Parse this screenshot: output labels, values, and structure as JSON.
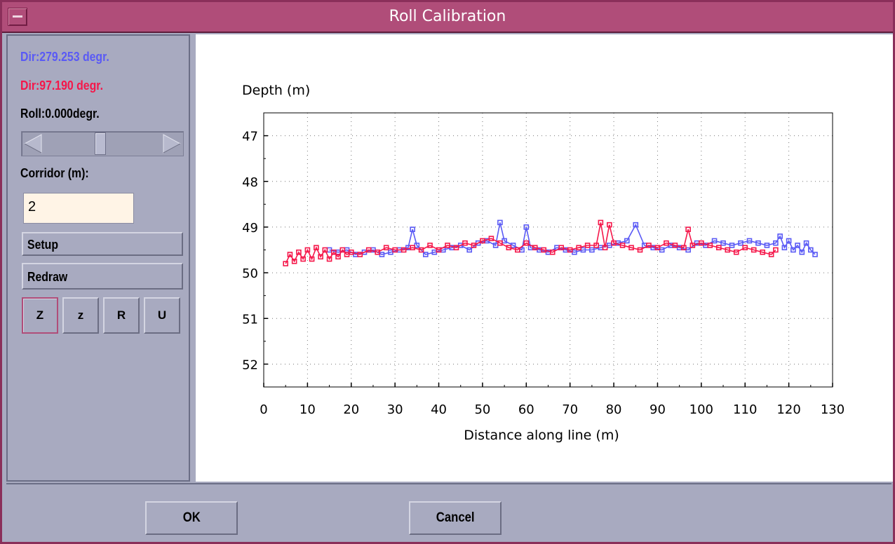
{
  "window": {
    "title": "Roll Calibration"
  },
  "sidebar": {
    "dir1_label": "Dir:279.253 degr.",
    "dir1_color": "#5a5af5",
    "dir2_label": "Dir:97.190 degr.",
    "dir2_color": "#f5174a",
    "roll_label": "Roll:0.000degr.",
    "roll_slider_fraction": 0.48,
    "corridor_label": "Corridor (m):",
    "corridor_value": "2",
    "setup_label": "Setup",
    "redraw_label": "Redraw",
    "zoom_buttons": [
      "Z",
      "z",
      "R",
      "U"
    ]
  },
  "footer": {
    "ok_label": "OK",
    "cancel_label": "Cancel"
  },
  "chart_data": {
    "type": "scatter",
    "title": "",
    "ylabel": "Depth (m)",
    "xlabel": "Distance along line (m)",
    "xlim": [
      0,
      130
    ],
    "ylim": [
      52.5,
      46.5
    ],
    "y_inverted": true,
    "x_ticks": [
      0,
      10,
      20,
      30,
      40,
      50,
      60,
      70,
      80,
      90,
      100,
      110,
      120,
      130
    ],
    "y_ticks": [
      47,
      48,
      49,
      50,
      51,
      52
    ],
    "grid": "dotted",
    "series": [
      {
        "color": "#5a5af5",
        "marker": "square",
        "x": [
          15,
          17,
          19,
          21,
          23,
          25,
          27,
          29,
          31,
          33,
          34,
          35,
          37,
          39,
          41,
          43,
          45,
          47,
          49,
          51,
          53,
          54,
          55,
          57,
          59,
          60,
          61,
          63,
          65,
          67,
          69,
          71,
          73,
          75,
          77,
          79,
          81,
          83,
          85,
          87,
          89,
          91,
          93,
          95,
          97,
          99,
          101,
          103,
          105,
          107,
          109,
          111,
          113,
          115,
          117,
          118,
          119,
          120,
          121,
          122,
          123,
          124,
          125,
          126
        ],
        "y": [
          49.5,
          49.55,
          49.5,
          49.6,
          49.55,
          49.5,
          49.6,
          49.55,
          49.5,
          49.45,
          49.05,
          49.4,
          49.6,
          49.55,
          49.5,
          49.45,
          49.4,
          49.5,
          49.35,
          49.3,
          49.4,
          48.9,
          49.3,
          49.4,
          49.5,
          49.0,
          49.45,
          49.5,
          49.55,
          49.45,
          49.5,
          49.55,
          49.5,
          49.5,
          49.45,
          49.4,
          49.35,
          49.3,
          48.95,
          49.4,
          49.45,
          49.5,
          49.4,
          49.45,
          49.5,
          49.35,
          49.4,
          49.3,
          49.35,
          49.4,
          49.35,
          49.3,
          49.35,
          49.4,
          49.35,
          49.2,
          49.45,
          49.3,
          49.5,
          49.4,
          49.55,
          49.35,
          49.5,
          49.6
        ]
      },
      {
        "color": "#f5174a",
        "marker": "square",
        "x": [
          5,
          6,
          7,
          8,
          9,
          10,
          11,
          12,
          13,
          14,
          15,
          16,
          17,
          18,
          19,
          20,
          22,
          24,
          26,
          28,
          30,
          32,
          34,
          36,
          38,
          40,
          42,
          44,
          46,
          48,
          50,
          52,
          54,
          56,
          58,
          60,
          62,
          64,
          66,
          68,
          70,
          72,
          74,
          76,
          77,
          78,
          79,
          80,
          82,
          84,
          86,
          88,
          90,
          92,
          94,
          96,
          97,
          98,
          100,
          102,
          104,
          106,
          108,
          110,
          112,
          114,
          116,
          117
        ],
        "y": [
          49.8,
          49.6,
          49.75,
          49.55,
          49.7,
          49.5,
          49.7,
          49.45,
          49.65,
          49.5,
          49.7,
          49.55,
          49.65,
          49.5,
          49.6,
          49.55,
          49.6,
          49.5,
          49.55,
          49.45,
          49.5,
          49.5,
          49.45,
          49.5,
          49.4,
          49.5,
          49.4,
          49.45,
          49.35,
          49.4,
          49.3,
          49.25,
          49.35,
          49.45,
          49.5,
          49.35,
          49.45,
          49.5,
          49.55,
          49.45,
          49.5,
          49.45,
          49.4,
          49.4,
          48.9,
          49.45,
          48.95,
          49.35,
          49.4,
          49.45,
          49.5,
          49.4,
          49.45,
          49.35,
          49.4,
          49.45,
          49.05,
          49.4,
          49.35,
          49.4,
          49.45,
          49.5,
          49.55,
          49.45,
          49.5,
          49.55,
          49.6,
          49.5
        ]
      }
    ]
  }
}
